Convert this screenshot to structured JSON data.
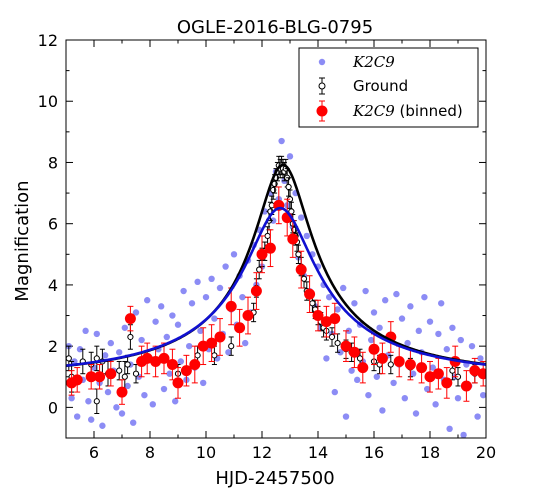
{
  "chart_data": {
    "type": "scatter",
    "title": "OGLE-2016-BLG-0795",
    "xlabel": "HJD-2457500",
    "ylabel": "Magnification",
    "xlim": [
      5,
      20
    ],
    "ylim": [
      -1,
      12
    ],
    "xticks": [
      "6",
      "8",
      "10",
      "12",
      "14",
      "16",
      "18",
      "20"
    ],
    "yticks": [
      "0",
      "2",
      "4",
      "6",
      "8",
      "10",
      "12"
    ],
    "grid": false,
    "legend_position": "top-right",
    "legend": [
      {
        "label": "K2C9",
        "italic": true,
        "marker": "dot"
      },
      {
        "label": "Ground",
        "italic": false,
        "marker": "open-errorbar"
      },
      {
        "label_italic": "K2C9",
        "label_plain": " (binned)",
        "marker": "filled-errorbar"
      }
    ],
    "colors": {
      "k2c9": "#6f6ff2",
      "ground": "#000000",
      "binned": "#ff0000",
      "fit_ground": "#000000",
      "fit_k2": "#1010d0"
    },
    "models": [
      {
        "name": "Ground model",
        "t0": 12.75,
        "u0": 0.127,
        "tE": 8.0
      },
      {
        "name": "K2C9 model",
        "t0": 12.65,
        "u0": 0.155,
        "tE": 8.0
      }
    ],
    "series": [
      {
        "name": "K2C9 (binned)",
        "x": [
          5.2,
          5.4,
          5.9,
          6.2,
          6.6,
          7.0,
          7.3,
          7.7,
          7.9,
          8.2,
          8.5,
          8.8,
          9.0,
          9.3,
          9.6,
          9.9,
          10.2,
          10.5,
          10.9,
          11.2,
          11.5,
          11.8,
          12.0,
          12.3,
          12.6,
          12.9,
          13.1,
          13.4,
          13.7,
          14.0,
          14.3,
          14.6,
          15.0,
          15.3,
          15.6,
          16.0,
          16.3,
          16.6,
          16.9,
          17.3,
          17.7,
          18.0,
          18.3,
          18.6,
          18.9,
          19.3,
          19.6,
          19.9
        ],
        "y": [
          0.8,
          0.9,
          1.0,
          1.0,
          1.1,
          0.5,
          2.9,
          1.5,
          1.6,
          1.5,
          1.6,
          1.4,
          0.8,
          1.2,
          1.4,
          2.0,
          2.1,
          2.3,
          3.3,
          2.6,
          3.0,
          3.8,
          5.0,
          5.2,
          6.6,
          6.2,
          5.5,
          4.5,
          3.7,
          3.0,
          2.8,
          2.9,
          2.0,
          1.8,
          1.3,
          1.9,
          1.6,
          2.3,
          1.5,
          1.4,
          1.3,
          1.0,
          1.1,
          0.8,
          1.5,
          0.7,
          1.2,
          1.1
        ],
        "yerr": [
          0.4,
          0.4,
          0.4,
          0.4,
          0.4,
          0.4,
          0.4,
          0.5,
          0.5,
          0.5,
          0.5,
          0.5,
          0.5,
          0.5,
          0.6,
          0.6,
          0.6,
          0.6,
          0.6,
          0.6,
          0.6,
          0.6,
          0.6,
          0.6,
          0.6,
          0.6,
          0.6,
          0.6,
          0.6,
          0.5,
          0.5,
          0.5,
          0.5,
          0.5,
          0.5,
          0.5,
          0.5,
          0.5,
          0.5,
          0.5,
          0.5,
          0.5,
          0.5,
          0.5,
          0.5,
          0.5,
          0.4,
          0.4
        ]
      },
      {
        "name": "Ground",
        "x": [
          5.1,
          5.2,
          5.6,
          5.9,
          6.1,
          6.1,
          6.3,
          6.5,
          6.9,
          7.1,
          7.2,
          7.3,
          7.5,
          9.0,
          9.7,
          10.3,
          10.9,
          11.7,
          11.8,
          11.9,
          12.0,
          12.1,
          12.2,
          12.25,
          12.3,
          12.35,
          12.4,
          12.45,
          12.5,
          12.55,
          12.6,
          12.65,
          12.7,
          12.75,
          12.8,
          12.85,
          12.9,
          12.95,
          13.0,
          13.05,
          13.1,
          13.15,
          13.2,
          13.25,
          13.3,
          13.4,
          13.5,
          13.6,
          13.8,
          13.9,
          14.0,
          14.1,
          14.2,
          14.3,
          14.5,
          14.7,
          15.0,
          15.2,
          15.5,
          16.0,
          16.2,
          16.6,
          17.3,
          18.8,
          19.0,
          19.6
        ],
        "y": [
          1.6,
          1.0,
          1.5,
          1.4,
          0.2,
          1.6,
          1.5,
          1.1,
          1.2,
          1.0,
          1.4,
          2.3,
          1.1,
          1.1,
          1.7,
          1.7,
          2.0,
          3.1,
          3.9,
          4.5,
          4.9,
          5.1,
          5.6,
          6.1,
          6.4,
          6.6,
          7.1,
          7.3,
          7.5,
          7.7,
          7.9,
          7.8,
          7.9,
          7.8,
          7.7,
          7.8,
          7.5,
          7.2,
          6.8,
          6.4,
          6.0,
          5.8,
          5.6,
          5.4,
          5.0,
          4.6,
          4.2,
          3.8,
          3.4,
          3.2,
          3.0,
          2.8,
          2.6,
          2.5,
          2.3,
          2.1,
          1.9,
          1.8,
          1.6,
          1.5,
          1.4,
          1.4,
          1.3,
          1.2,
          1.0,
          1.1
        ],
        "yerr": [
          0.4,
          0.5,
          0.4,
          0.4,
          0.4,
          0.4,
          0.4,
          0.4,
          0.3,
          0.5,
          0.3,
          0.4,
          0.3,
          0.3,
          0.3,
          0.3,
          0.3,
          0.3,
          0.3,
          0.3,
          0.3,
          0.3,
          0.3,
          0.3,
          0.3,
          0.3,
          0.3,
          0.3,
          0.3,
          0.3,
          0.3,
          0.3,
          0.3,
          0.3,
          0.3,
          0.3,
          0.3,
          0.3,
          0.3,
          0.3,
          0.3,
          0.3,
          0.3,
          0.3,
          0.3,
          0.3,
          0.3,
          0.3,
          0.3,
          0.3,
          0.3,
          0.3,
          0.3,
          0.3,
          0.3,
          0.3,
          0.3,
          0.3,
          0.3,
          0.3,
          0.3,
          0.3,
          0.3,
          0.3,
          0.3,
          0.3
        ]
      },
      {
        "name": "K2C9",
        "x": [
          5.1,
          5.2,
          5.3,
          5.4,
          5.5,
          5.6,
          5.7,
          5.8,
          5.9,
          6.0,
          6.1,
          6.2,
          6.3,
          6.4,
          6.5,
          6.6,
          6.7,
          6.8,
          6.9,
          7.0,
          7.1,
          7.2,
          7.3,
          7.4,
          7.5,
          7.6,
          7.7,
          7.8,
          7.9,
          8.0,
          8.1,
          8.2,
          8.3,
          8.4,
          8.5,
          8.6,
          8.7,
          8.8,
          8.9,
          9.0,
          9.1,
          9.2,
          9.3,
          9.4,
          9.5,
          9.6,
          9.7,
          9.8,
          9.9,
          10.0,
          10.1,
          10.2,
          10.3,
          10.4,
          10.5,
          10.6,
          10.7,
          10.8,
          10.9,
          11.0,
          11.1,
          11.2,
          11.3,
          11.4,
          11.5,
          11.6,
          11.7,
          11.8,
          11.9,
          12.0,
          12.1,
          12.2,
          12.3,
          12.4,
          12.5,
          12.6,
          12.7,
          12.8,
          12.9,
          13.0,
          13.1,
          13.2,
          13.3,
          13.4,
          13.5,
          13.6,
          13.7,
          13.8,
          13.9,
          14.0,
          14.1,
          14.2,
          14.3,
          14.4,
          14.5,
          14.6,
          14.7,
          14.8,
          14.9,
          15.0,
          15.1,
          15.2,
          15.3,
          15.4,
          15.5,
          15.6,
          15.7,
          15.8,
          15.9,
          16.0,
          16.1,
          16.2,
          16.3,
          16.4,
          16.5,
          16.6,
          16.7,
          16.8,
          16.9,
          17.0,
          17.1,
          17.2,
          17.3,
          17.4,
          17.5,
          17.6,
          17.7,
          17.8,
          17.9,
          18.0,
          18.1,
          18.2,
          18.3,
          18.4,
          18.5,
          18.6,
          18.7,
          18.8,
          18.9,
          19.0,
          19.1,
          19.2,
          19.3,
          19.4,
          19.5,
          19.6,
          19.7,
          19.8,
          19.9
        ],
        "y": [
          2.0,
          0.3,
          1.5,
          -0.3,
          1.9,
          0.9,
          2.5,
          0.2,
          -0.4,
          1.3,
          2.4,
          0.8,
          -0.6,
          1.7,
          0.5,
          2.1,
          1.2,
          0.0,
          1.8,
          -0.2,
          2.6,
          0.7,
          1.4,
          -0.5,
          3.1,
          1.0,
          2.2,
          0.4,
          3.5,
          1.6,
          0.1,
          2.8,
          1.9,
          3.3,
          0.6,
          2.3,
          1.1,
          3.0,
          0.2,
          2.7,
          1.5,
          3.8,
          0.9,
          2.0,
          3.4,
          1.3,
          4.1,
          2.5,
          0.8,
          3.6,
          1.9,
          4.2,
          2.9,
          1.6,
          3.9,
          2.4,
          4.6,
          1.8,
          3.2,
          5.0,
          2.7,
          4.3,
          3.6,
          2.1,
          4.8,
          3.1,
          5.3,
          4.0,
          5.8,
          4.6,
          6.4,
          5.2,
          7.0,
          6.1,
          7.7,
          6.8,
          8.7,
          7.4,
          6.6,
          8.2,
          5.9,
          7.0,
          4.9,
          6.2,
          4.3,
          5.6,
          3.8,
          5.0,
          3.3,
          4.6,
          2.6,
          4.0,
          1.6,
          3.6,
          2.4,
          0.5,
          3.2,
          1.8,
          3.9,
          -0.3,
          2.5,
          1.2,
          3.4,
          0.9,
          2.7,
          1.5,
          3.8,
          0.4,
          2.2,
          3.1,
          1.0,
          2.6,
          -0.1,
          3.5,
          1.7,
          2.3,
          0.8,
          3.7,
          1.4,
          2.9,
          0.3,
          2.1,
          3.3,
          1.1,
          -0.2,
          2.5,
          1.8,
          3.6,
          0.6,
          2.8,
          1.3,
          0.1,
          2.4,
          3.4,
          0.9,
          1.9,
          -0.7,
          2.6,
          1.0,
          0.3,
          2.2,
          -0.9,
          1.4,
          0.7,
          2.0,
          1.3,
          -0.3,
          1.6,
          0.4
        ]
      }
    ]
  }
}
